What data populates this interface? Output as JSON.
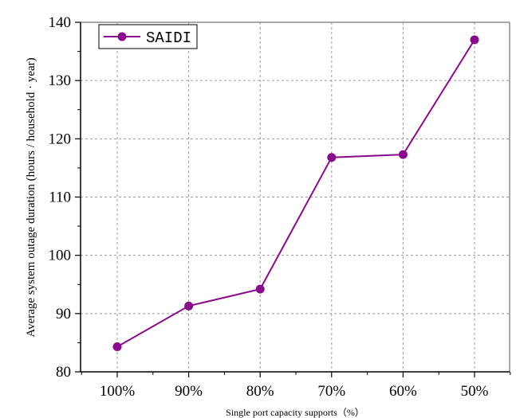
{
  "chart_data": {
    "type": "line",
    "categories": [
      "100%",
      "90%",
      "80%",
      "70%",
      "60%",
      "50%"
    ],
    "series": [
      {
        "name": "SAIDI",
        "values": [
          84.3,
          91.3,
          94.2,
          116.8,
          117.3,
          137.0
        ]
      }
    ],
    "ylim": [
      80,
      140
    ],
    "yticks": [
      "80",
      "90",
      "100",
      "110",
      "120",
      "130",
      "140"
    ],
    "ylabel": "Average system outage duration (hours / household · year)",
    "xlabel": "Single port capacity supports（%）",
    "grid": true,
    "legend_position": "top-left",
    "colors": {
      "series": "#8b0a8b",
      "grid": "#9a9a9a",
      "axis": "#000000"
    }
  }
}
